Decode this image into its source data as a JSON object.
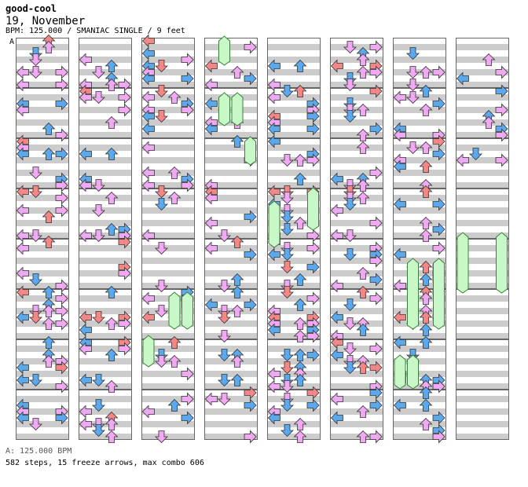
{
  "header": {
    "title": "good-cool",
    "song": "19, November",
    "meta": "BPM: 125.000 / SMANIAC SINGLE / 9 feet",
    "marker": "A"
  },
  "footer": {
    "bpm": "A: 125.000 BPM",
    "stats": "582 steps, 15 freeze arrows, max combo 606"
  },
  "colors": {
    "row_band": "#cccccc",
    "quarter": "#f58686",
    "eighth": "#5aa9ef",
    "sixteenth": "#f0a8f2",
    "freeze": "#c8f7c8",
    "freeze_stroke": "#3a7f3a",
    "frame": "#000000"
  },
  "chart": {
    "columns": 8,
    "measures_per_column": 8,
    "lanes": [
      "left",
      "down",
      "up",
      "right"
    ]
  }
}
